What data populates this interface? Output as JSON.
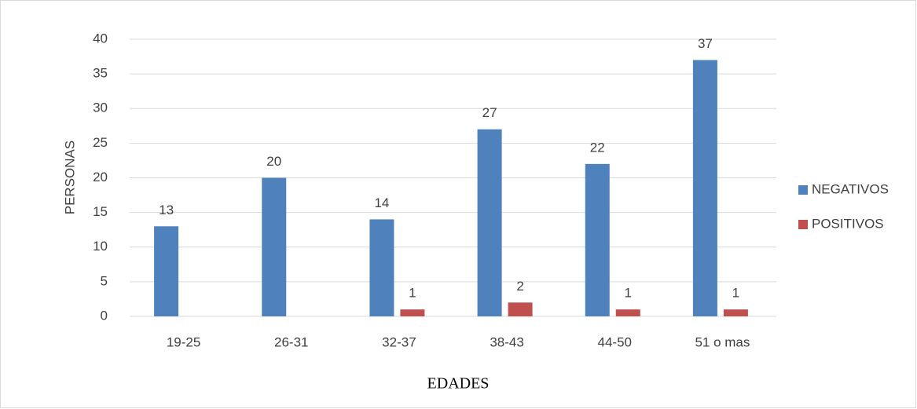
{
  "chart_data": {
    "type": "bar",
    "x_label": "EDADES",
    "y_label": "PERSONAS",
    "categories": [
      "19-25",
      "26-31",
      "32-37",
      "38-43",
      "44-50",
      "51 o mas"
    ],
    "series": [
      {
        "name": "NEGATIVOS",
        "color": "#4f81bd",
        "values": [
          13,
          20,
          14,
          27,
          22,
          37
        ]
      },
      {
        "name": "POSITIVOS",
        "color": "#c0504d",
        "values": [
          null,
          null,
          1,
          2,
          1,
          1
        ]
      }
    ],
    "ylim": [
      0,
      40
    ],
    "yticks": [
      0,
      5,
      10,
      15,
      20,
      25,
      30,
      35,
      40
    ],
    "grid": true,
    "legend": "right"
  }
}
